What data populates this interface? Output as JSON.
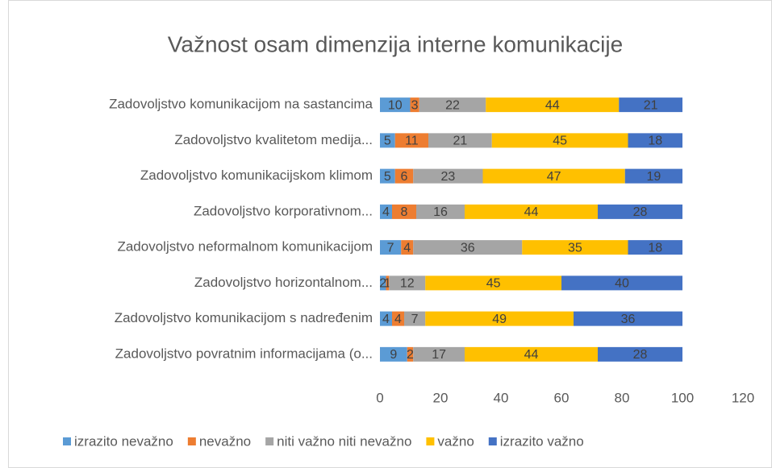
{
  "chart_data": {
    "type": "stacked_bar_horizontal",
    "title": "Važnost osam dimenzija interne komunikacije",
    "categories": [
      "Zadovoljstvo komunikacijom na sastancima",
      "Zadovoljstvo kvalitetom medija...",
      "Zadovoljstvo komunikacijskom klimom",
      "Zadovoljstvo korporativnom...",
      "Zadovoljstvo neformalnom komunikacijom",
      "Zadovoljstvo horizontalnom...",
      "Zadovoljstvo komunikacijom s nadređenim",
      "Zadovoljstvo povratnim informacijama (o..."
    ],
    "series": [
      {
        "name": "izrazito nevažno",
        "color": "#5b9bd5",
        "values": [
          10,
          5,
          5,
          4,
          7,
          2,
          4,
          9
        ]
      },
      {
        "name": "nevažno",
        "color": "#ed7d31",
        "values": [
          3,
          11,
          6,
          8,
          4,
          1,
          4,
          2
        ]
      },
      {
        "name": "niti važno niti nevažno",
        "color": "#a5a5a5",
        "values": [
          22,
          21,
          23,
          16,
          36,
          12,
          7,
          17
        ]
      },
      {
        "name": "važno",
        "color": "#ffc000",
        "values": [
          44,
          45,
          47,
          44,
          35,
          45,
          49,
          44
        ]
      },
      {
        "name": "izrazito važno",
        "color": "#4472c4",
        "values": [
          21,
          18,
          19,
          28,
          18,
          40,
          36,
          28
        ]
      }
    ],
    "xlim": [
      0,
      120
    ],
    "xticks": [
      0,
      20,
      40,
      60,
      80,
      100,
      120
    ],
    "legend": "bottom"
  }
}
